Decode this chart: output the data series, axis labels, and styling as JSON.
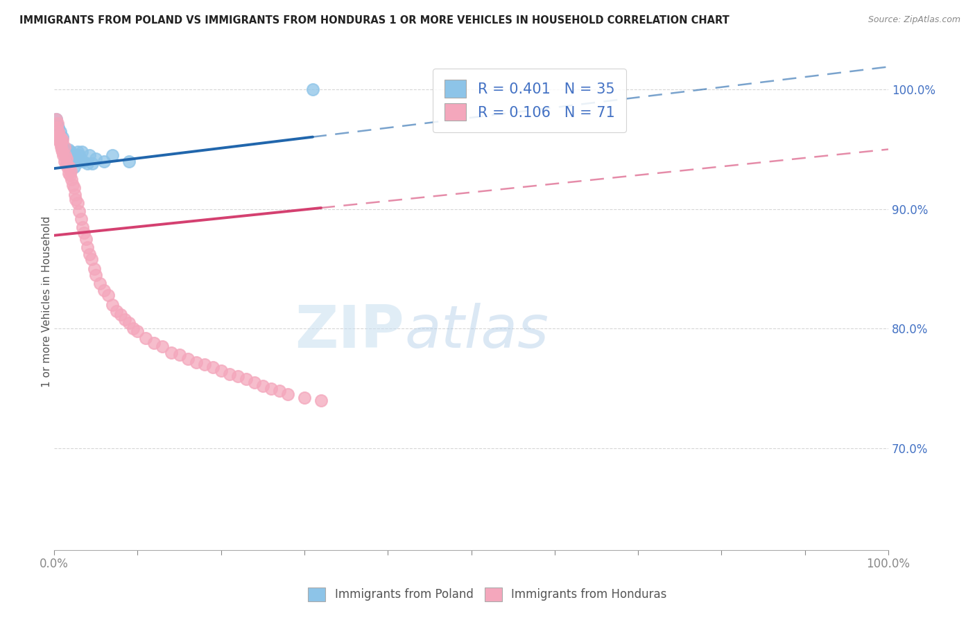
{
  "title": "IMMIGRANTS FROM POLAND VS IMMIGRANTS FROM HONDURAS 1 OR MORE VEHICLES IN HOUSEHOLD CORRELATION CHART",
  "source": "Source: ZipAtlas.com",
  "ylabel_left": "1 or more Vehicles in Household",
  "legend_poland": "Immigrants from Poland",
  "legend_honduras": "Immigrants from Honduras",
  "R_poland": 0.401,
  "N_poland": 35,
  "R_honduras": 0.106,
  "N_honduras": 71,
  "color_poland": "#8dc4e8",
  "color_honduras": "#f4a7bc",
  "color_poland_line": "#2166ac",
  "color_honduras_line": "#d44070",
  "color_right_axis": "#4472c4",
  "color_legend_text": "#4472c4",
  "poland_x": [
    0.002,
    0.004,
    0.005,
    0.006,
    0.007,
    0.008,
    0.009,
    0.01,
    0.011,
    0.012,
    0.013,
    0.014,
    0.015,
    0.016,
    0.017,
    0.018,
    0.019,
    0.02,
    0.022,
    0.024,
    0.025,
    0.026,
    0.028,
    0.03,
    0.031,
    0.033,
    0.035,
    0.04,
    0.042,
    0.046,
    0.05,
    0.06,
    0.07,
    0.09,
    0.31
  ],
  "poland_y": [
    0.975,
    0.97,
    0.968,
    0.96,
    0.965,
    0.958,
    0.955,
    0.96,
    0.952,
    0.948,
    0.945,
    0.95,
    0.942,
    0.938,
    0.95,
    0.945,
    0.94,
    0.948,
    0.94,
    0.935,
    0.945,
    0.942,
    0.948,
    0.945,
    0.94,
    0.948,
    0.94,
    0.938,
    0.945,
    0.938,
    0.942,
    0.94,
    0.945,
    0.94,
    1.0
  ],
  "honduras_x": [
    0.002,
    0.003,
    0.004,
    0.004,
    0.005,
    0.005,
    0.006,
    0.007,
    0.007,
    0.008,
    0.008,
    0.009,
    0.01,
    0.01,
    0.011,
    0.012,
    0.012,
    0.013,
    0.014,
    0.015,
    0.016,
    0.017,
    0.018,
    0.019,
    0.02,
    0.021,
    0.022,
    0.024,
    0.025,
    0.026,
    0.028,
    0.03,
    0.032,
    0.034,
    0.036,
    0.038,
    0.04,
    0.042,
    0.045,
    0.048,
    0.05,
    0.055,
    0.06,
    0.065,
    0.07,
    0.075,
    0.08,
    0.085,
    0.09,
    0.095,
    0.1,
    0.11,
    0.12,
    0.13,
    0.14,
    0.15,
    0.16,
    0.17,
    0.18,
    0.19,
    0.2,
    0.21,
    0.22,
    0.23,
    0.24,
    0.25,
    0.26,
    0.27,
    0.28,
    0.3,
    0.32
  ],
  "honduras_y": [
    0.975,
    0.968,
    0.972,
    0.96,
    0.965,
    0.958,
    0.962,
    0.955,
    0.96,
    0.958,
    0.952,
    0.95,
    0.958,
    0.948,
    0.945,
    0.952,
    0.94,
    0.945,
    0.938,
    0.942,
    0.935,
    0.93,
    0.935,
    0.928,
    0.932,
    0.925,
    0.92,
    0.918,
    0.912,
    0.908,
    0.905,
    0.898,
    0.892,
    0.885,
    0.88,
    0.875,
    0.868,
    0.862,
    0.858,
    0.85,
    0.845,
    0.838,
    0.832,
    0.828,
    0.82,
    0.815,
    0.812,
    0.808,
    0.805,
    0.8,
    0.798,
    0.792,
    0.788,
    0.785,
    0.78,
    0.778,
    0.775,
    0.772,
    0.77,
    0.768,
    0.765,
    0.762,
    0.76,
    0.758,
    0.755,
    0.752,
    0.75,
    0.748,
    0.745,
    0.742,
    0.74
  ],
  "xlim": [
    0.0,
    1.0
  ],
  "ylim": [
    0.615,
    1.03
  ],
  "yticks_right": [
    0.7,
    0.8,
    0.9,
    1.0
  ],
  "xticks": [
    0.0,
    0.1,
    0.2,
    0.3,
    0.4,
    0.5,
    0.6,
    0.7,
    0.8,
    0.9,
    1.0
  ],
  "background_color": "#ffffff",
  "grid_color": "#cccccc",
  "trend_solid_end_poland": 0.31,
  "trend_solid_end_honduras": 0.32,
  "trend_line_start": 0.0
}
